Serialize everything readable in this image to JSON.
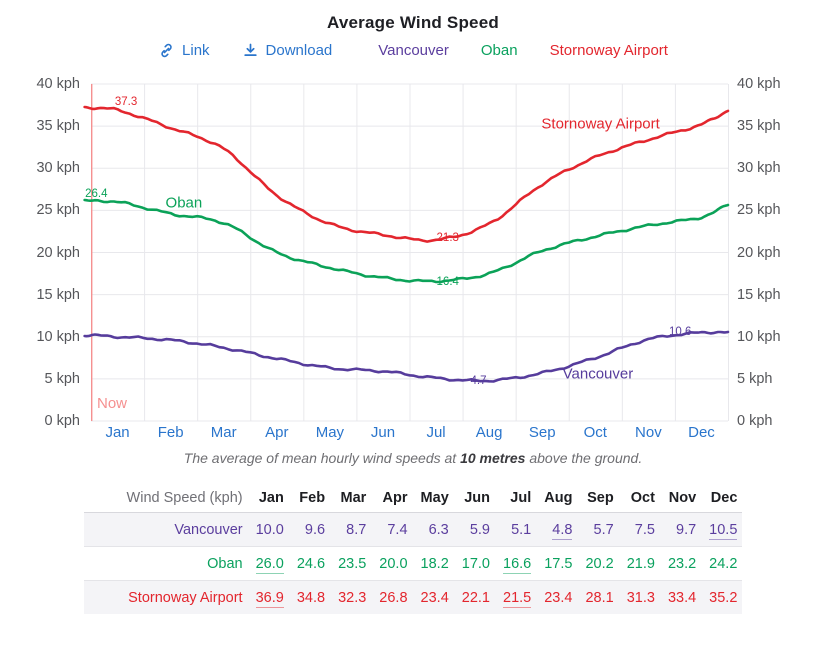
{
  "page": {
    "title": "Average Wind Speed"
  },
  "toolbar": {
    "link_label": "Link",
    "download_label": "Download",
    "link_color": "#2a75cc"
  },
  "legend": [
    {
      "label": "Vancouver",
      "color": "#5b3e9e"
    },
    {
      "label": "Oban",
      "color": "#0aa15e"
    },
    {
      "label": "Stornoway Airport",
      "color": "#e3262e"
    }
  ],
  "chart_data": {
    "type": "line",
    "title": "Average Wind Speed",
    "unit": "kph",
    "categories": [
      "Jan",
      "Feb",
      "Mar",
      "Apr",
      "May",
      "Jun",
      "Jul",
      "Aug",
      "Sep",
      "Oct",
      "Nov",
      "Dec"
    ],
    "ylim": [
      0,
      40
    ],
    "ytick_step": 5,
    "grid": true,
    "grid_color": "#e8e8ec",
    "axis_label_color": "#55565a",
    "month_label_color": "#2a75cc",
    "now": {
      "label": "Now",
      "color": "#f59090",
      "x": 0
    },
    "series": [
      {
        "name": "Vancouver",
        "color": "#563c9c",
        "values": [
          10.0,
          9.6,
          8.7,
          7.4,
          6.3,
          5.9,
          5.1,
          4.8,
          5.7,
          7.5,
          9.7,
          10.5
        ],
        "edge_start": 10.2,
        "edge_end": 10.5
      },
      {
        "name": "Oban",
        "color": "#0ba258",
        "values": [
          26.0,
          24.6,
          23.5,
          20.0,
          18.2,
          17.0,
          16.6,
          17.5,
          20.2,
          21.9,
          23.2,
          24.2
        ],
        "edge_start": 26.1,
        "edge_end": 25.7
      },
      {
        "name": "Stornoway Airport",
        "color": "#e3262e",
        "values": [
          36.9,
          34.8,
          32.3,
          26.8,
          23.4,
          22.1,
          21.5,
          23.4,
          28.1,
          31.3,
          33.4,
          35.2
        ],
        "edge_start": 37.2,
        "edge_end": 36.9
      }
    ],
    "inline_labels": [
      {
        "text": "Oban",
        "x": 1.75,
        "y": 25.9,
        "color": "#0ba258"
      },
      {
        "text": "Stornoway Airport",
        "x": 9.6,
        "y": 35.2,
        "color": "#e3262e"
      },
      {
        "text": "Vancouver",
        "x": 9.55,
        "y": 5.6,
        "color": "#563c9c"
      }
    ],
    "annotations": [
      {
        "text": "37.3",
        "x": 0.66,
        "y": 37.9,
        "color": "#e3262e"
      },
      {
        "text": "26.4",
        "x": 0.1,
        "y": 27.0,
        "color": "#0ba258"
      },
      {
        "text": "21.3",
        "x": 6.72,
        "y": 21.7,
        "color": "#e3262e"
      },
      {
        "text": "16.4",
        "x": 6.72,
        "y": 16.5,
        "color": "#0ba258"
      },
      {
        "text": "4.7",
        "x": 7.3,
        "y": 4.8,
        "color": "#563c9c"
      },
      {
        "text": "10.6",
        "x": 11.1,
        "y": 10.6,
        "color": "#563c9c"
      }
    ]
  },
  "caption": {
    "prefix": "The average of mean hourly wind speeds at ",
    "strong": "10 metres",
    "suffix": " above the ground."
  },
  "table": {
    "header_label": "Wind Speed (kph)",
    "months": [
      "Jan",
      "Feb",
      "Mar",
      "Apr",
      "May",
      "Jun",
      "Jul",
      "Aug",
      "Sep",
      "Oct",
      "Nov",
      "Dec"
    ],
    "rows": [
      {
        "name": "Vancouver",
        "color": "#5b3e9e",
        "shaded": true,
        "values": [
          "10.0",
          "9.6",
          "8.7",
          "7.4",
          "6.3",
          "5.9",
          "5.1",
          "4.8",
          "5.7",
          "7.5",
          "9.7",
          "10.5"
        ],
        "underlined": [
          "4.8",
          "10.5"
        ]
      },
      {
        "name": "Oban",
        "color": "#0aa15e",
        "shaded": false,
        "values": [
          "26.0",
          "24.6",
          "23.5",
          "20.0",
          "18.2",
          "17.0",
          "16.6",
          "17.5",
          "20.2",
          "21.9",
          "23.2",
          "24.2"
        ],
        "underlined": [
          "26.0",
          "16.6"
        ]
      },
      {
        "name": "Stornoway Airport",
        "color": "#e3262e",
        "shaded": true,
        "values": [
          "36.9",
          "34.8",
          "32.3",
          "26.8",
          "23.4",
          "22.1",
          "21.5",
          "23.4",
          "28.1",
          "31.3",
          "33.4",
          "35.2"
        ],
        "underlined": [
          "36.9",
          "21.5"
        ]
      }
    ]
  }
}
